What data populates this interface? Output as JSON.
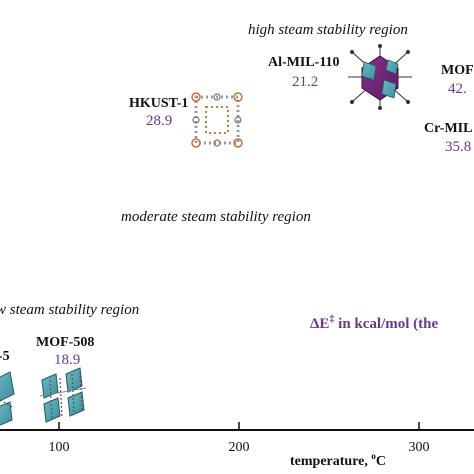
{
  "chart_data": {
    "type": "scatter",
    "title": "",
    "xlabel": "temperature, ",
    "xlabel_sup": "o",
    "xlabel_unit": "C",
    "ylabel": "",
    "x_ticks": [
      "100",
      "200",
      "300"
    ],
    "region_labels": {
      "high": "high steam stability region",
      "moderate": "moderate steam stability region",
      "low": "w steam stability region"
    },
    "annotation_prefix": "ΔE",
    "annotation_sup": "‡",
    "annotation_rest": " in kcal/mol (the",
    "value_color": "#6a3a8c",
    "points": [
      {
        "name": "HKUST-1",
        "value": "28.9",
        "icon": "cu-paddlewheel-framework-icon"
      },
      {
        "name": "Al-MIL-110",
        "value": "21.2",
        "icon": "al-octahedral-cluster-icon"
      },
      {
        "name": "MOF",
        "value": "42.",
        "icon": "none"
      },
      {
        "name": "Cr-MIL",
        "value": "35.8",
        "icon": "none"
      },
      {
        "name": "MOF-508",
        "value": "18.9",
        "icon": "zn-layered-framework-icon"
      },
      {
        "name": "-5",
        "value": "",
        "icon": "zn-framework-fragment-icon"
      }
    ]
  }
}
